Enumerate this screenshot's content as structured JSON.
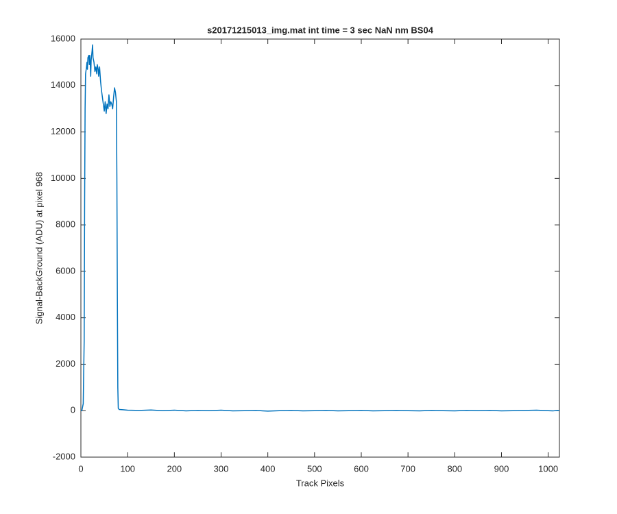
{
  "chart_data": {
    "type": "line",
    "title": "s20171215013_img.mat int time = 3 sec  NaN nm BS04",
    "x_label": "Track Pixels",
    "y_label": "Signal-BackGround (ADU) at pixel 968",
    "color": "#0072bd",
    "x": [
      0,
      2,
      5,
      7,
      8,
      9,
      10,
      12,
      13,
      14,
      15,
      17,
      18,
      19,
      20,
      21,
      22,
      24,
      25,
      26,
      28,
      30,
      32,
      34,
      35,
      37,
      38,
      40,
      42,
      44,
      46,
      48,
      50,
      52,
      54,
      56,
      58,
      60,
      62,
      64,
      66,
      68,
      70,
      72,
      74,
      76,
      77,
      78,
      79,
      80,
      82,
      90,
      100,
      125,
      150,
      175,
      200,
      225,
      250,
      275,
      300,
      325,
      350,
      375,
      400,
      425,
      450,
      475,
      500,
      525,
      550,
      575,
      600,
      625,
      650,
      675,
      700,
      725,
      750,
      775,
      800,
      825,
      850,
      875,
      900,
      925,
      950,
      975,
      1000,
      1010,
      1020,
      1024
    ],
    "values": [
      0,
      0,
      300,
      3000,
      9000,
      13000,
      14500,
      14800,
      15000,
      14700,
      15200,
      15300,
      14900,
      15300,
      15000,
      14400,
      15100,
      15500,
      15750,
      15200,
      15000,
      14600,
      14800,
      14500,
      14900,
      14700,
      14400,
      14800,
      14200,
      13800,
      13500,
      13200,
      12900,
      13300,
      12800,
      13200,
      13000,
      13600,
      13100,
      13300,
      13200,
      13000,
      13500,
      13900,
      13700,
      13300,
      10000,
      5000,
      1000,
      100,
      50,
      40,
      20,
      10,
      30,
      0,
      20,
      -10,
      10,
      0,
      20,
      -10,
      0,
      10,
      -20,
      0,
      10,
      -10,
      0,
      10,
      -10,
      0,
      10,
      -10,
      0,
      10,
      0,
      -10,
      10,
      0,
      -10,
      10,
      0,
      10,
      -10,
      0,
      10,
      20,
      0,
      -10,
      10,
      0
    ],
    "xlim": [
      0,
      1024
    ],
    "ylim": [
      -2000,
      16000
    ],
    "xticks": [
      0,
      100,
      200,
      300,
      400,
      500,
      600,
      700,
      800,
      900,
      1000
    ],
    "yticks": [
      -2000,
      0,
      2000,
      4000,
      6000,
      8000,
      10000,
      12000,
      14000,
      16000
    ]
  }
}
